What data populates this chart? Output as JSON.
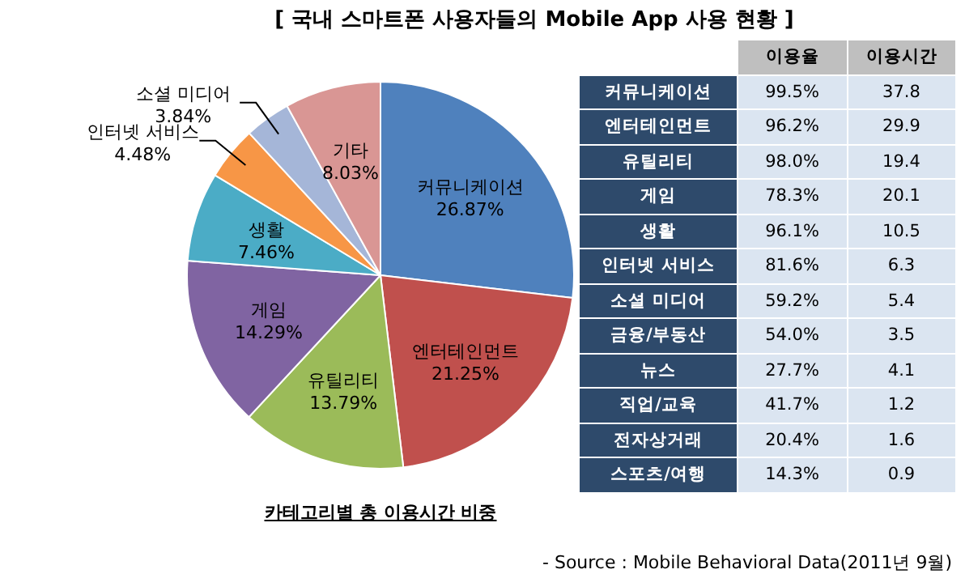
{
  "chart_data": [
    {
      "type": "pie",
      "title": "[ 국내 스마트폰 사용자들의 Mobile App 사용 현황 ]",
      "subtitle": "카테고리별 총 이용시간 비중",
      "categories": [
        "커뮤니케이션",
        "엔터테인먼트",
        "유틸리티",
        "게임",
        "생활",
        "인터넷 서비스",
        "소셜 미디어",
        "기타"
      ],
      "values": [
        26.87,
        21.25,
        13.79,
        14.29,
        7.46,
        4.48,
        3.84,
        8.03
      ],
      "value_labels": [
        "26.87%",
        "21.25%",
        "13.79%",
        "14.29%",
        "7.46%",
        "4.48%",
        "3.84%",
        "8.03%"
      ],
      "colors": [
        "#4f81bd",
        "#c0504d",
        "#9bbb59",
        "#8064a2",
        "#4bacc6",
        "#f79646",
        "#a5b6d8",
        "#d99694"
      ],
      "legend": false,
      "annotations": [
        "- Source : Mobile Behavioral Data(2011년 9월)"
      ]
    },
    {
      "type": "other",
      "categories": [
        "커뮤니케이션",
        "엔터테인먼트",
        "유틸리티",
        "게임",
        "생활",
        "인터넷 서비스",
        "소셜 미디어",
        "금융/부동산",
        "뉴스",
        "직업/교육",
        "전자상거래",
        "스포츠/여행"
      ],
      "series": [
        {
          "name": "이용율",
          "values": [
            99.5,
            96.2,
            98.0,
            78.3,
            96.1,
            81.6,
            59.2,
            54.0,
            27.7,
            41.7,
            20.4,
            14.3
          ],
          "value_labels": [
            "99.5%",
            "96.2%",
            "98.0%",
            "78.3%",
            "96.1%",
            "81.6%",
            "59.2%",
            "54.0%",
            "27.7%",
            "41.7%",
            "20.4%",
            "14.3%"
          ]
        },
        {
          "name": "이용시간",
          "values": [
            37.8,
            29.9,
            19.4,
            20.1,
            10.5,
            6.3,
            5.4,
            3.5,
            4.1,
            1.2,
            1.6,
            0.9
          ],
          "value_labels": [
            "37.8",
            "29.9",
            "19.4",
            "20.1",
            "10.5",
            "6.3",
            "5.4",
            "3.5",
            "4.1",
            "1.2",
            "1.6",
            "0.9"
          ]
        }
      ]
    }
  ]
}
